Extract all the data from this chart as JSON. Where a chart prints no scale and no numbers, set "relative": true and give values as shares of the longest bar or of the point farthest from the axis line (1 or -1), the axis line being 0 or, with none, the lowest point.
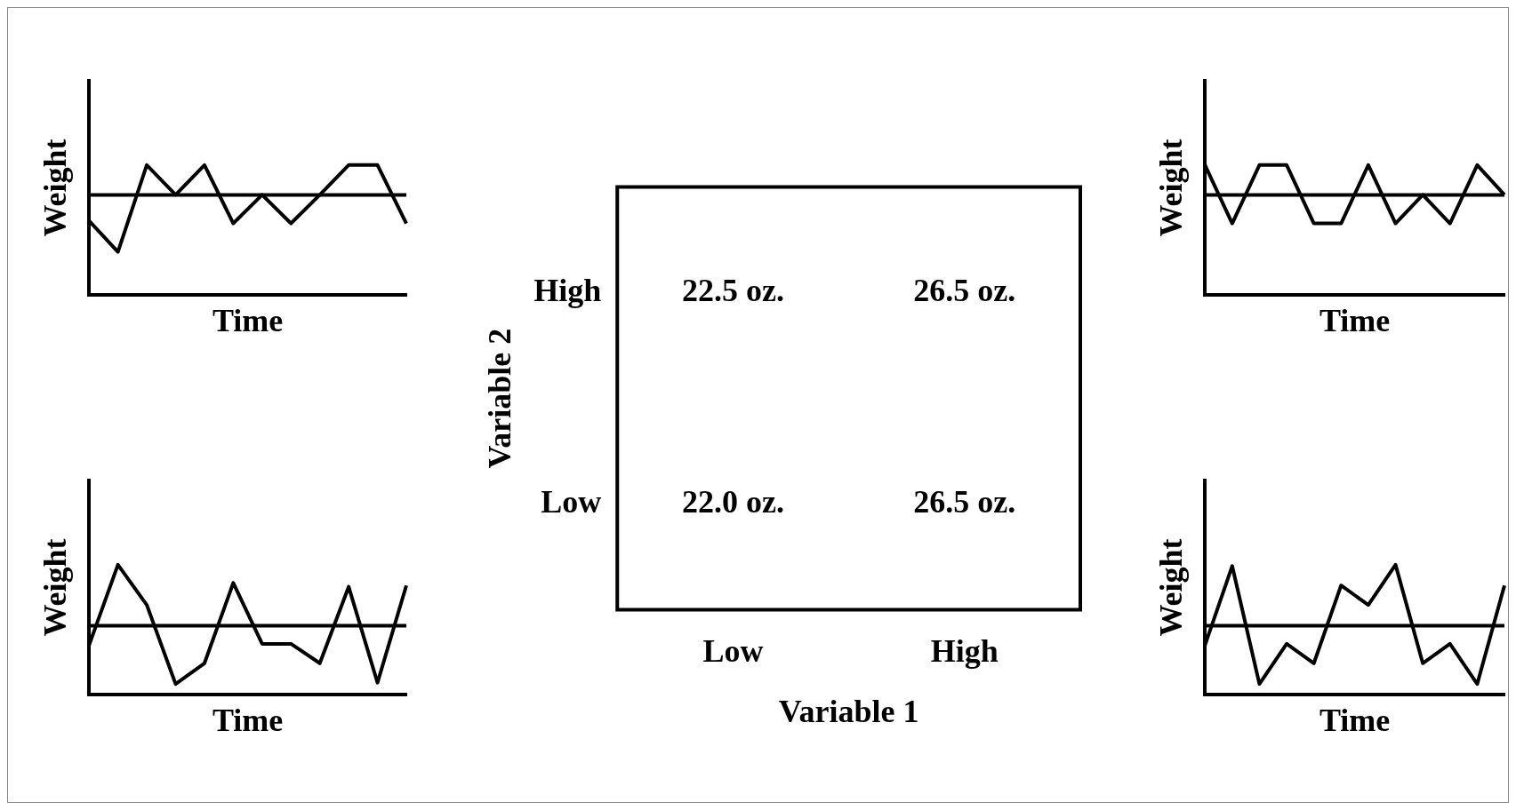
{
  "chart_data": [
    {
      "type": "line",
      "relative": true,
      "xlabel": "Time",
      "ylabel": "Weight",
      "categories": [
        null,
        null,
        null,
        null,
        null,
        null,
        null,
        null,
        null,
        null,
        null,
        null
      ],
      "color": "#000000",
      "marker": "none",
      "grid": false,
      "tick_labels": false,
      "ref_lines": [
        {
          "axis": "y",
          "value": 0.77
        }
      ],
      "values": [
        0.57,
        0.33,
        1,
        0.77,
        1,
        0.55,
        0.77,
        0.55,
        0.77,
        1,
        1,
        0.55
      ]
    },
    {
      "type": "other",
      "xlabel": "Variable 1",
      "ylabel": "Variable 2",
      "categories": [
        "Low",
        "High"
      ],
      "y_categories": [
        "High",
        "Low"
      ],
      "annotations": [
        {
          "text": "22.5 oz.",
          "x": "Low",
          "y": "High"
        },
        {
          "text": "26.5 oz.",
          "x": "High",
          "y": "High"
        },
        {
          "text": "22.0 oz.",
          "x": "Low",
          "y": "Low"
        },
        {
          "text": "26.5 oz.",
          "x": "High",
          "y": "Low"
        }
      ]
    },
    {
      "type": "line",
      "relative": true,
      "xlabel": "Time",
      "ylabel": "Weight",
      "categories": [
        null,
        null,
        null,
        null,
        null,
        null,
        null,
        null,
        null,
        null,
        null,
        null
      ],
      "color": "#000000",
      "marker": "none",
      "grid": false,
      "tick_labels": false,
      "ref_lines": [
        {
          "axis": "y",
          "value": 0.77
        }
      ],
      "values": [
        1,
        0.55,
        1,
        1,
        0.55,
        0.55,
        1,
        0.55,
        0.77,
        0.55,
        1,
        0.77
      ]
    },
    {
      "type": "line",
      "relative": true,
      "xlabel": "Time",
      "ylabel": "Weight",
      "categories": [
        null,
        null,
        null,
        null,
        null,
        null,
        null,
        null,
        null,
        null,
        null,
        null
      ],
      "color": "#000000",
      "marker": "none",
      "grid": false,
      "tick_labels": false,
      "ref_lines": [
        {
          "axis": "y",
          "value": 0.53
        }
      ],
      "values": [
        0.38,
        1,
        0.69,
        0.08,
        0.24,
        0.86,
        0.39,
        0.39,
        0.24,
        0.83,
        0.09,
        0.84
      ]
    },
    {
      "type": "line",
      "relative": true,
      "xlabel": "Time",
      "ylabel": "Weight",
      "categories": [
        null,
        null,
        null,
        null,
        null,
        null,
        null,
        null,
        null,
        null,
        null,
        null
      ],
      "color": "#000000",
      "marker": "none",
      "grid": false,
      "tick_labels": false,
      "ref_lines": [
        {
          "axis": "y",
          "value": 0.53
        }
      ],
      "values": [
        0.38,
        0.99,
        0.08,
        0.39,
        0.24,
        0.84,
        0.69,
        1,
        0.24,
        0.39,
        0.08,
        0.84
      ]
    }
  ]
}
